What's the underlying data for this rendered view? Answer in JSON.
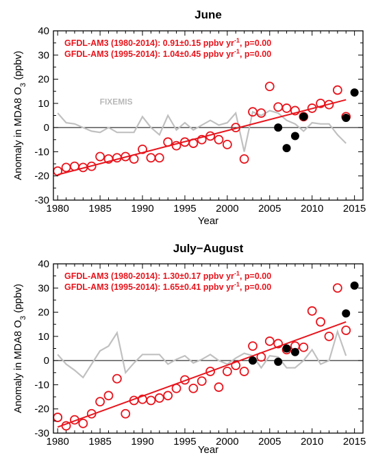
{
  "chart_data": [
    {
      "type": "scatter",
      "title": "June",
      "xlabel": "Year",
      "ylabel": "Anomaly in MDA8 O",
      "ylabel_sub": "3",
      "ylabel_unit": "(ppbv)",
      "xlim": [
        1979.5,
        2016
      ],
      "ylim": [
        -30,
        40
      ],
      "xticks": [
        1980,
        1985,
        1990,
        1995,
        2000,
        2005,
        2010,
        2015
      ],
      "yticks": [
        -30,
        -20,
        -10,
        0,
        10,
        20,
        30,
        40
      ],
      "annotations": [
        {
          "pre": "GFDL-AM3 (1980-2014): 0.91±0.15 ppbv yr",
          "sup": "-1",
          "post": ", p=0.00"
        },
        {
          "pre": "GFDL-AM3 (1995-2014): 1.04±0.45 ppbv yr",
          "sup": "-1",
          "post": ", p=0.00"
        }
      ],
      "series_label": "FIXEMIS",
      "colors": {
        "model": "#e8141c",
        "obs": "#000000",
        "fixemis": "#c0c0c0"
      },
      "series": [
        {
          "x": [
            1980,
            1981,
            1982,
            1983,
            1984,
            1985,
            1986,
            1987,
            1988,
            1989,
            1990,
            1991,
            1992,
            1993,
            1994,
            1995,
            1996,
            1997,
            1998,
            1999,
            2000,
            2001,
            2002,
            2003,
            2004,
            2005,
            2006,
            2007,
            2008,
            2009,
            2010,
            2011,
            2012,
            2013,
            2014
          ],
          "y": [
            -18,
            -16.5,
            -16,
            -16.5,
            -16,
            -12,
            -13,
            -12.5,
            -12,
            -13,
            -9,
            -12.5,
            -12.5,
            -6,
            -7.5,
            -6,
            -6.5,
            -5,
            -3.5,
            -5,
            -7,
            0,
            -13,
            6.5,
            6,
            17,
            8.5,
            8,
            7,
            4.5,
            8,
            10,
            9.5,
            15.5,
            4.5
          ]
        },
        {
          "x": [
            2006,
            2007,
            2008,
            2009,
            2014,
            2015
          ],
          "y": [
            0,
            -8.5,
            -3.5,
            4.5,
            4,
            14.5
          ]
        },
        {
          "x": [
            1980,
            1981,
            1982,
            1983,
            1984,
            1985,
            1986,
            1987,
            1988,
            1989,
            1990,
            1991,
            1992,
            1993,
            1994,
            1995,
            1996,
            1997,
            1998,
            1999,
            2000,
            2001,
            2002,
            2003,
            2004,
            2005,
            2006,
            2007,
            2008,
            2009,
            2010,
            2011,
            2012,
            2013,
            2014
          ],
          "y": [
            6,
            2,
            1.5,
            0,
            -1.5,
            -2,
            0,
            -2,
            -2,
            -2,
            4.5,
            0,
            -3,
            5,
            -1,
            2,
            -1,
            1,
            3,
            1,
            2,
            6,
            -10,
            6.5,
            5,
            7,
            6,
            3,
            1.5,
            -1.5,
            2,
            1.5,
            1.5,
            -3,
            -6.5
          ]
        }
      ],
      "trend": {
        "x": [
          1980,
          2014
        ],
        "y": [
          -19.5,
          11.5
        ]
      }
    },
    {
      "type": "scatter",
      "title": "July−August",
      "xlabel": "Year",
      "ylabel": "Anomaly in MDA8 O",
      "ylabel_sub": "3",
      "ylabel_unit": "(ppbv)",
      "xlim": [
        1979.5,
        2016
      ],
      "ylim": [
        -30,
        40
      ],
      "xticks": [
        1980,
        1985,
        1990,
        1995,
        2000,
        2005,
        2010,
        2015
      ],
      "yticks": [
        -30,
        -20,
        -10,
        0,
        10,
        20,
        30,
        40
      ],
      "annotations": [
        {
          "pre": "GFDL-AM3 (1980-2014): 1.30±0.17 ppbv yr",
          "sup": "-1",
          "post": ", p=0.00"
        },
        {
          "pre": "GFDL-AM3 (1995-2014): 1.65±0.41 ppbv yr",
          "sup": "-1",
          "post": ", p=0.00"
        }
      ],
      "series_label": "",
      "colors": {
        "model": "#e8141c",
        "obs": "#000000",
        "fixemis": "#c0c0c0"
      },
      "series": [
        {
          "x": [
            1980,
            1981,
            1982,
            1983,
            1984,
            1985,
            1986,
            1987,
            1988,
            1989,
            1990,
            1991,
            1992,
            1993,
            1994,
            1995,
            1996,
            1997,
            1998,
            1999,
            2000,
            2001,
            2002,
            2003,
            2004,
            2005,
            2006,
            2007,
            2008,
            2009,
            2010,
            2011,
            2012,
            2013,
            2014
          ],
          "y": [
            -23.5,
            -27,
            -24.5,
            -26,
            -22,
            -17,
            -14.5,
            -7.5,
            -22,
            -16.5,
            -16,
            -16.5,
            -15.5,
            -14.5,
            -11.5,
            -8,
            -11.5,
            -8.5,
            -4.5,
            -11,
            -4.5,
            -2,
            -4.5,
            6,
            1.5,
            8,
            7,
            4.5,
            6,
            5.5,
            20.5,
            16,
            10,
            30,
            12.5
          ]
        },
        {
          "x": [
            2003,
            2006,
            2007,
            2008,
            2014,
            2015
          ],
          "y": [
            0,
            -0.5,
            5,
            3.5,
            19.5,
            31
          ]
        },
        {
          "x": [
            1980,
            1981,
            1982,
            1983,
            1984,
            1985,
            1986,
            1987,
            1988,
            1989,
            1990,
            1991,
            1992,
            1993,
            1994,
            1995,
            1996,
            1997,
            1998,
            1999,
            2000,
            2001,
            2002,
            2003,
            2004,
            2005,
            2006,
            2007,
            2008,
            2009,
            2010,
            2011,
            2012,
            2013,
            2014
          ],
          "y": [
            2.5,
            -1.5,
            -4,
            -7,
            -1.5,
            4,
            6,
            11.5,
            -5,
            -1,
            2.5,
            2.5,
            2.5,
            -1.5,
            0.5,
            2,
            -1,
            0.5,
            2.5,
            0,
            -1.5,
            1,
            3,
            2,
            -3,
            2,
            1.5,
            -3,
            -3,
            0,
            4.5,
            -1.5,
            0,
            12,
            2
          ]
        }
      ],
      "trend": {
        "x": [
          1980,
          2014
        ],
        "y": [
          -27.5,
          16
        ]
      }
    }
  ]
}
